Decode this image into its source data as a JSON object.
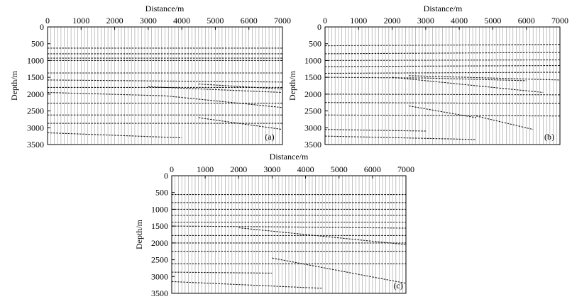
{
  "chart_data": [
    {
      "type": "line",
      "panel_label": "(a)",
      "title": "",
      "xlabel": "Distance/m",
      "ylabel": "Depth/m",
      "xlim": [
        0,
        7000
      ],
      "ylim": [
        3500,
        0
      ],
      "x_ticks": [
        "0",
        "1000",
        "2000",
        "3000",
        "4000",
        "5000",
        "6000",
        "7000"
      ],
      "y_ticks": [
        "0",
        "500",
        "1000",
        "1500",
        "2000",
        "2500",
        "3000",
        "3500"
      ],
      "trace_spacing": 100,
      "series": [
        {
          "x": [
            0,
            7000
          ],
          "y": [
            630,
            630
          ]
        },
        {
          "x": [
            0,
            7000
          ],
          "y": [
            800,
            800
          ]
        },
        {
          "x": [
            0,
            7000
          ],
          "y": [
            930,
            930
          ]
        },
        {
          "x": [
            0,
            7000
          ],
          "y": [
            1000,
            1000
          ]
        },
        {
          "x": [
            0,
            7000
          ],
          "y": [
            1370,
            1370
          ]
        },
        {
          "x": [
            0,
            2400,
            7000
          ],
          "y": [
            1580,
            1600,
            1640
          ]
        },
        {
          "x": [
            0,
            7000
          ],
          "y": [
            1800,
            1800
          ]
        },
        {
          "x": [
            0,
            3500,
            7000
          ],
          "y": [
            1950,
            2050,
            2400
          ]
        },
        {
          "x": [
            3000,
            7000
          ],
          "y": [
            1780,
            1950
          ]
        },
        {
          "x": [
            4500,
            7000
          ],
          "y": [
            1700,
            1850
          ]
        },
        {
          "x": [
            0,
            7000
          ],
          "y": [
            2270,
            2270
          ]
        },
        {
          "x": [
            0,
            7000
          ],
          "y": [
            2620,
            2620
          ]
        },
        {
          "x": [
            0,
            7000
          ],
          "y": [
            2870,
            2870
          ]
        },
        {
          "x": [
            0,
            4000
          ],
          "y": [
            3150,
            3300
          ]
        },
        {
          "x": [
            4500,
            7000
          ],
          "y": [
            2700,
            3050
          ]
        }
      ]
    },
    {
      "type": "line",
      "panel_label": "(b)",
      "title": "",
      "xlabel": "Distance/m",
      "ylabel": "Depth/m",
      "xlim": [
        0,
        7000
      ],
      "ylim": [
        3500,
        0
      ],
      "x_ticks": [
        "0",
        "1000",
        "2000",
        "3000",
        "4000",
        "5000",
        "6000",
        "7000"
      ],
      "y_ticks": [
        "0",
        "500",
        "1000",
        "1500",
        "2000",
        "2500",
        "3000",
        "3500"
      ],
      "trace_spacing": 100,
      "series": [
        {
          "x": [
            0,
            7000
          ],
          "y": [
            560,
            520
          ]
        },
        {
          "x": [
            0,
            7000
          ],
          "y": [
            800,
            760
          ]
        },
        {
          "x": [
            0,
            7000
          ],
          "y": [
            1000,
            980
          ]
        },
        {
          "x": [
            0,
            7000
          ],
          "y": [
            1180,
            1150
          ]
        },
        {
          "x": [
            0,
            7000
          ],
          "y": [
            1380,
            1350
          ]
        },
        {
          "x": [
            0,
            3000,
            6000
          ],
          "y": [
            1500,
            1520,
            1600
          ]
        },
        {
          "x": [
            2500,
            7000
          ],
          "y": [
            1450,
            1580
          ]
        },
        {
          "x": [
            2000,
            6500
          ],
          "y": [
            1500,
            1950
          ]
        },
        {
          "x": [
            0,
            7000
          ],
          "y": [
            2000,
            2020
          ]
        },
        {
          "x": [
            0,
            7000
          ],
          "y": [
            2250,
            2280
          ]
        },
        {
          "x": [
            2500,
            4500
          ],
          "y": [
            2350,
            2700
          ]
        },
        {
          "x": [
            0,
            7000
          ],
          "y": [
            2620,
            2650
          ]
        },
        {
          "x": [
            4500,
            6200
          ],
          "y": [
            2650,
            3050
          ]
        },
        {
          "x": [
            0,
            3000
          ],
          "y": [
            3050,
            3100
          ]
        },
        {
          "x": [
            0,
            4500
          ],
          "y": [
            3250,
            3350
          ]
        }
      ]
    },
    {
      "type": "line",
      "panel_label": "(c)",
      "title": "",
      "xlabel": "Distance/m",
      "ylabel": "Depth/m",
      "xlim": [
        0,
        7000
      ],
      "ylim": [
        3500,
        0
      ],
      "x_ticks": [
        "0",
        "1000",
        "2000",
        "3000",
        "4000",
        "5000",
        "6000",
        "7000"
      ],
      "y_ticks": [
        "0",
        "500",
        "1000",
        "1500",
        "2000",
        "2500",
        "3000",
        "3500"
      ],
      "trace_spacing": 100,
      "series": [
        {
          "x": [
            0,
            7000
          ],
          "y": [
            560,
            560
          ]
        },
        {
          "x": [
            0,
            7000
          ],
          "y": [
            800,
            800
          ]
        },
        {
          "x": [
            0,
            7000
          ],
          "y": [
            1000,
            1000
          ]
        },
        {
          "x": [
            0,
            7000
          ],
          "y": [
            1180,
            1180
          ]
        },
        {
          "x": [
            0,
            7000
          ],
          "y": [
            1380,
            1380
          ]
        },
        {
          "x": [
            0,
            3000,
            7000
          ],
          "y": [
            1500,
            1520,
            1560
          ]
        },
        {
          "x": [
            2000,
            7000
          ],
          "y": [
            1550,
            2050
          ]
        },
        {
          "x": [
            0,
            7000
          ],
          "y": [
            1780,
            1780
          ]
        },
        {
          "x": [
            0,
            7000
          ],
          "y": [
            2000,
            2000
          ]
        },
        {
          "x": [
            0,
            7000
          ],
          "y": [
            2250,
            2250
          ]
        },
        {
          "x": [
            0,
            7000
          ],
          "y": [
            2620,
            2620
          ]
        },
        {
          "x": [
            3000,
            7000
          ],
          "y": [
            2450,
            3200
          ]
        },
        {
          "x": [
            0,
            3000
          ],
          "y": [
            2870,
            2900
          ]
        },
        {
          "x": [
            0,
            4500
          ],
          "y": [
            3150,
            3350
          ]
        }
      ]
    }
  ]
}
